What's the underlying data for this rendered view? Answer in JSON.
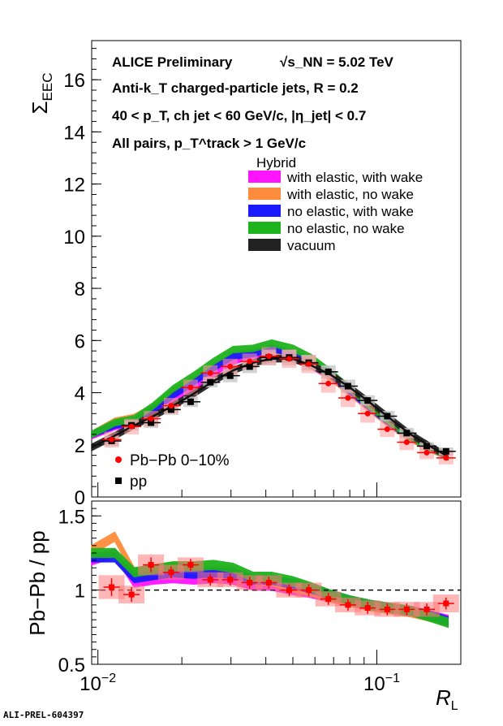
{
  "footer_id": "ALI-PREL-604397",
  "chart_data": [
    {
      "type": "line",
      "panel": "upper",
      "ylabel": "Σ_EEC",
      "ylim": [
        0,
        17.5
      ],
      "xlim": [
        0.0095,
        0.2
      ],
      "x_scale": "log",
      "y_ticks": [
        0,
        2,
        4,
        6,
        8,
        10,
        12,
        14,
        16
      ],
      "annotations": {
        "line1": "ALICE Preliminary",
        "energy": "√s_NN = 5.02 TeV",
        "line2": "Anti-k_T charged-particle jets, R = 0.2",
        "line3": "40 < p_T, ch jet < 60 GeV/c, |η_jet| < 0.7",
        "line4": "All pairs, p_T^track > 1 GeV/c"
      },
      "legend_title": "Hybrid",
      "legend_placement": "top-right",
      "bands": [
        {
          "name": "with elastic, with wake",
          "color": "#ff14ff",
          "x": [
            0.0095,
            0.0115,
            0.0135,
            0.0158,
            0.0186,
            0.022,
            0.026,
            0.0305,
            0.036,
            0.042,
            0.05,
            0.058,
            0.068,
            0.08,
            0.095,
            0.112,
            0.132,
            0.155,
            0.18
          ],
          "y": [
            2.35,
            2.7,
            2.85,
            3.25,
            3.75,
            4.2,
            4.75,
            5.2,
            5.45,
            5.5,
            5.3,
            5.05,
            4.6,
            4.0,
            3.35,
            2.75,
            2.25,
            1.85,
            1.55
          ]
        },
        {
          "name": "with elastic, no wake",
          "color": "#ff8c3c",
          "x": [
            0.0095,
            0.0115,
            0.0135,
            0.0158,
            0.0186,
            0.022,
            0.026,
            0.0305,
            0.036,
            0.042,
            0.05,
            0.058,
            0.068,
            0.08,
            0.095,
            0.112,
            0.132,
            0.155,
            0.18
          ],
          "y": [
            2.4,
            2.9,
            3.05,
            3.45,
            4.05,
            4.5,
            5.0,
            5.4,
            5.6,
            5.65,
            5.4,
            5.1,
            4.6,
            4.0,
            3.35,
            2.75,
            2.25,
            1.85,
            1.55
          ]
        },
        {
          "name": "no elastic, with wake",
          "color": "#1a1aff",
          "x": [
            0.0095,
            0.0115,
            0.0135,
            0.0158,
            0.0186,
            0.022,
            0.026,
            0.0305,
            0.036,
            0.042,
            0.05,
            0.058,
            0.068,
            0.08,
            0.095,
            0.112,
            0.132,
            0.155,
            0.18
          ],
          "y": [
            2.4,
            2.75,
            2.9,
            3.35,
            3.9,
            4.4,
            4.95,
            5.4,
            5.5,
            5.7,
            5.5,
            5.2,
            4.7,
            4.05,
            3.4,
            2.8,
            2.3,
            1.9,
            1.55
          ]
        },
        {
          "name": "no elastic, no wake",
          "color": "#1eb41e",
          "x": [
            0.0095,
            0.0115,
            0.0135,
            0.0158,
            0.0186,
            0.022,
            0.026,
            0.0305,
            0.036,
            0.042,
            0.05,
            0.058,
            0.068,
            0.08,
            0.095,
            0.112,
            0.132,
            0.155,
            0.18
          ],
          "y": [
            2.4,
            2.85,
            3.0,
            3.5,
            4.15,
            4.65,
            5.2,
            5.65,
            5.7,
            5.9,
            5.7,
            5.35,
            4.8,
            4.15,
            3.45,
            2.85,
            2.3,
            1.9,
            1.55
          ]
        },
        {
          "name": "vacuum",
          "color": "#222222",
          "x": [
            0.0095,
            0.0115,
            0.0135,
            0.0158,
            0.0186,
            0.022,
            0.026,
            0.0305,
            0.036,
            0.042,
            0.05,
            0.058,
            0.068,
            0.08,
            0.095,
            0.112,
            0.132,
            0.155,
            0.18
          ],
          "y": [
            1.9,
            2.35,
            2.75,
            3.1,
            3.5,
            3.95,
            4.45,
            4.85,
            5.15,
            5.3,
            5.3,
            5.05,
            4.7,
            4.2,
            3.6,
            3.0,
            2.4,
            1.95,
            1.55
          ]
        }
      ],
      "series": [
        {
          "name": "Pb−Pb 0−10%",
          "color": "#ff0000",
          "marker": "circle",
          "x": [
            0.0112,
            0.0132,
            0.0155,
            0.0183,
            0.0215,
            0.0253,
            0.0298,
            0.035,
            0.041,
            0.0485,
            0.057,
            0.067,
            0.0788,
            0.0927,
            0.109,
            0.128,
            0.151,
            0.177
          ],
          "y": [
            2.2,
            2.7,
            3.0,
            3.5,
            4.2,
            4.75,
            5.0,
            5.2,
            5.4,
            5.3,
            5.1,
            4.35,
            3.8,
            3.2,
            2.6,
            2.1,
            1.7,
            1.5
          ],
          "err_half_height": [
            0.3,
            0.3,
            0.3,
            0.3,
            0.3,
            0.3,
            0.3,
            0.3,
            0.35,
            0.35,
            0.35,
            0.35,
            0.35,
            0.35,
            0.3,
            0.3,
            0.25,
            0.25
          ]
        },
        {
          "name": "pp",
          "color": "#000000",
          "marker": "square",
          "x": [
            0.0112,
            0.0132,
            0.0155,
            0.0183,
            0.0215,
            0.0253,
            0.0298,
            0.035,
            0.041,
            0.0485,
            0.057,
            0.067,
            0.0788,
            0.0927,
            0.109,
            0.128,
            0.151,
            0.177
          ],
          "y": [
            2.15,
            2.75,
            2.85,
            3.35,
            3.65,
            4.4,
            4.65,
            5.0,
            5.35,
            5.35,
            5.15,
            4.8,
            4.25,
            3.7,
            3.1,
            2.45,
            1.95,
            1.75
          ],
          "err_half_height": [
            0.2,
            0.2,
            0.2,
            0.2,
            0.2,
            0.2,
            0.25,
            0.25,
            0.3,
            0.3,
            0.3,
            0.25,
            0.25,
            0.2,
            0.2,
            0.2,
            0.15,
            0.15
          ]
        }
      ],
      "data_legend_placement": "bottom-left"
    },
    {
      "type": "line",
      "panel": "lower",
      "xlabel": "R_L",
      "ylabel": "Pb−Pb / pp",
      "ylim": [
        0.5,
        1.6
      ],
      "x_scale": "log",
      "y_ticks": [
        0.5,
        1,
        1.5
      ],
      "x_tick_labels": [
        "10^−2",
        "10^−1"
      ],
      "reference_line": 1,
      "bands": [
        {
          "name": "with elastic, with wake",
          "color": "#ff14ff",
          "x": [
            0.0095,
            0.0115,
            0.0135,
            0.0158,
            0.0186,
            0.022,
            0.026,
            0.0305,
            0.036,
            0.042,
            0.05,
            0.058,
            0.068,
            0.08,
            0.095,
            0.112,
            0.132,
            0.155,
            0.18
          ],
          "y": [
            1.2,
            1.25,
            1.05,
            1.07,
            1.08,
            1.07,
            1.08,
            1.07,
            1.03,
            1.03,
            1.0,
            0.98,
            0.95,
            0.92,
            0.9,
            0.88,
            0.86,
            0.83,
            0.8
          ]
        },
        {
          "name": "with elastic, no wake",
          "color": "#ff8c3c",
          "x": [
            0.0095,
            0.0115,
            0.0135,
            0.0158,
            0.0186,
            0.022,
            0.026,
            0.0305,
            0.036,
            0.042,
            0.05,
            0.058,
            0.068,
            0.08,
            0.095,
            0.112,
            0.132,
            0.155,
            0.18
          ],
          "y": [
            1.27,
            1.36,
            1.12,
            1.13,
            1.16,
            1.15,
            1.13,
            1.13,
            1.07,
            1.06,
            1.02,
            0.99,
            0.95,
            0.92,
            0.89,
            0.87,
            0.85,
            0.82,
            0.79
          ]
        },
        {
          "name": "no elastic, with wake",
          "color": "#1a1aff",
          "x": [
            0.0095,
            0.0115,
            0.0135,
            0.0158,
            0.0186,
            0.022,
            0.026,
            0.0305,
            0.036,
            0.042,
            0.05,
            0.058,
            0.068,
            0.08,
            0.095,
            0.112,
            0.132,
            0.155,
            0.18
          ],
          "y": [
            1.22,
            1.22,
            1.08,
            1.1,
            1.12,
            1.11,
            1.12,
            1.11,
            1.07,
            1.07,
            1.04,
            1.01,
            0.97,
            0.93,
            0.9,
            0.88,
            0.86,
            0.83,
            0.79
          ]
        },
        {
          "name": "no elastic, no wake",
          "color": "#1eb41e",
          "x": [
            0.0095,
            0.0115,
            0.0135,
            0.0158,
            0.0186,
            0.022,
            0.026,
            0.0305,
            0.036,
            0.042,
            0.05,
            0.058,
            0.068,
            0.08,
            0.095,
            0.112,
            0.132,
            0.155,
            0.18
          ],
          "y": [
            1.25,
            1.25,
            1.12,
            1.14,
            1.16,
            1.16,
            1.17,
            1.15,
            1.09,
            1.09,
            1.06,
            1.02,
            0.97,
            0.93,
            0.9,
            0.88,
            0.86,
            0.82,
            0.78
          ]
        }
      ],
      "series": [
        {
          "name": "Pb−Pb / pp",
          "color": "#ff0000",
          "marker": "square",
          "x": [
            0.0112,
            0.0132,
            0.0155,
            0.0183,
            0.0215,
            0.0253,
            0.0298,
            0.035,
            0.041,
            0.0485,
            0.057,
            0.067,
            0.0788,
            0.0927,
            0.109,
            0.128,
            0.151,
            0.177
          ],
          "y": [
            1.02,
            0.97,
            1.17,
            1.12,
            1.17,
            1.07,
            1.07,
            1.05,
            1.05,
            1.0,
            1.0,
            0.94,
            0.9,
            0.88,
            0.87,
            0.87,
            0.87,
            0.91
          ],
          "err_half_height": [
            0.06,
            0.05,
            0.05,
            0.04,
            0.04,
            0.04,
            0.04,
            0.04,
            0.04,
            0.04,
            0.04,
            0.04,
            0.04,
            0.04,
            0.04,
            0.04,
            0.04,
            0.04
          ],
          "sys_half_height": [
            0.08,
            0.06,
            0.07,
            0.05,
            0.05,
            0.05,
            0.05,
            0.05,
            0.05,
            0.05,
            0.05,
            0.05,
            0.05,
            0.05,
            0.05,
            0.05,
            0.05,
            0.06
          ]
        }
      ]
    }
  ]
}
